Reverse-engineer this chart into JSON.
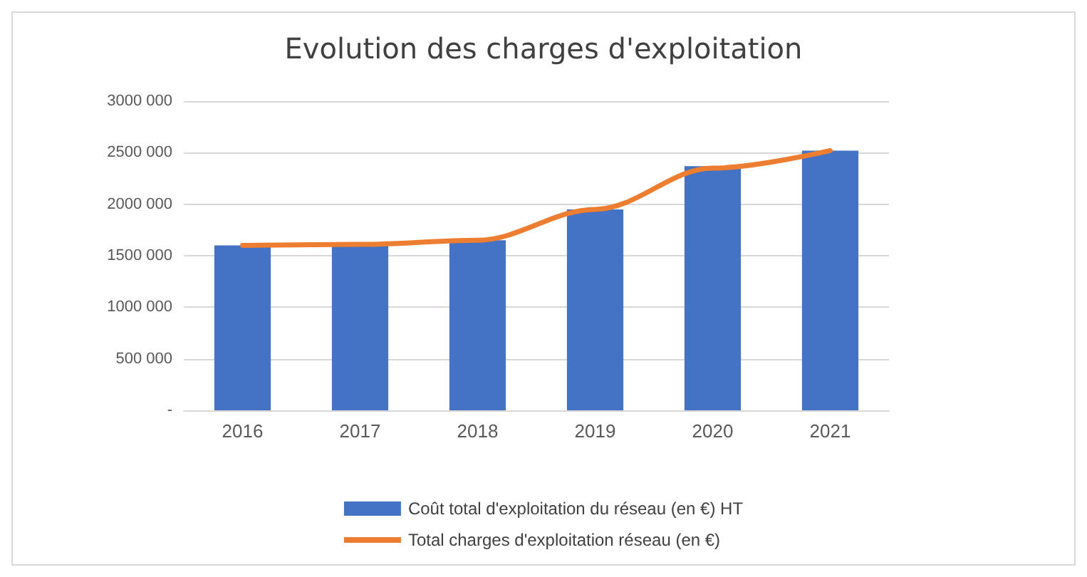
{
  "chart_data": {
    "type": "bar",
    "title": "Evolution des charges d'exploitation",
    "categories": [
      "2016",
      "2017",
      "2018",
      "2019",
      "2020",
      "2021"
    ],
    "series": [
      {
        "name": "Coût total d'exploitation du réseau (en €) HT",
        "color": "#4472c4",
        "values": [
          1600000,
          1600000,
          1650000,
          1950000,
          2370000,
          2520000
        ]
      },
      {
        "name": "Total charges d'exploitation réseau (en €)",
        "type": "line",
        "color": "#ed7d31",
        "values": [
          1600000,
          1610000,
          1650000,
          1950000,
          2350000,
          2520000
        ]
      }
    ],
    "ylim": [
      0,
      3000000
    ],
    "yticks": [
      {
        "value": 0,
        "label": "-"
      },
      {
        "value": 500000,
        "label": "500 000"
      },
      {
        "value": 1000000,
        "label": "1000 000"
      },
      {
        "value": 1500000,
        "label": "1500 000"
      },
      {
        "value": 2000000,
        "label": "2000 000"
      },
      {
        "value": 2500000,
        "label": "2500 000"
      },
      {
        "value": 3000000,
        "label": "3000 000"
      }
    ],
    "grid": "y",
    "legend": "bottom",
    "marker": "none",
    "line_style": "solid"
  }
}
